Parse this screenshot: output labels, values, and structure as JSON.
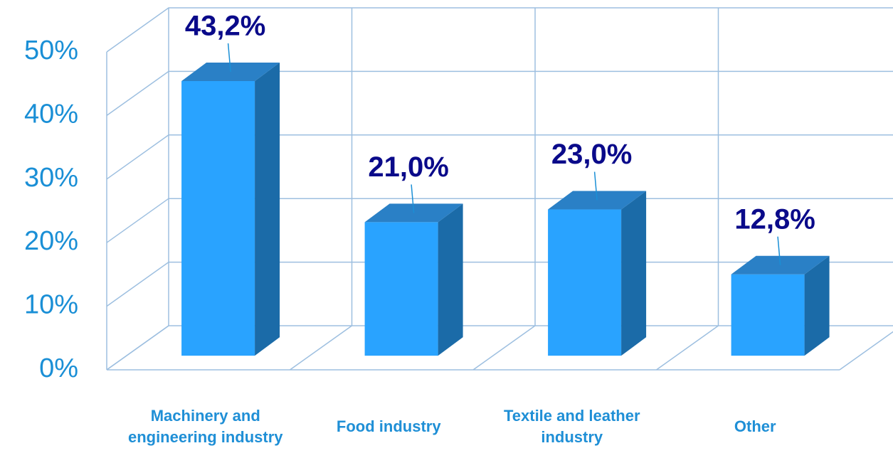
{
  "chart_data": {
    "type": "bar3d",
    "categories": [
      "Machinery and engineering industry",
      "Food industry",
      "Textile and leather industry",
      "Other"
    ],
    "values": [
      43.2,
      21.0,
      23.0,
      12.8
    ],
    "value_labels": [
      "43,2%",
      "21,0%",
      "23,0%",
      "12,8%"
    ],
    "colors": {
      "front": "#29a3ff",
      "side": "#1b6ba8",
      "top": "#2a80c6"
    },
    "ylim": [
      0,
      50
    ],
    "yticks": [
      {
        "value": 0,
        "label": "0%"
      },
      {
        "value": 10,
        "label": "10%"
      },
      {
        "value": 20,
        "label": "20%"
      },
      {
        "value": 30,
        "label": "30%"
      },
      {
        "value": 40,
        "label": "40%"
      },
      {
        "value": 50,
        "label": "50%"
      }
    ],
    "grid": true
  }
}
